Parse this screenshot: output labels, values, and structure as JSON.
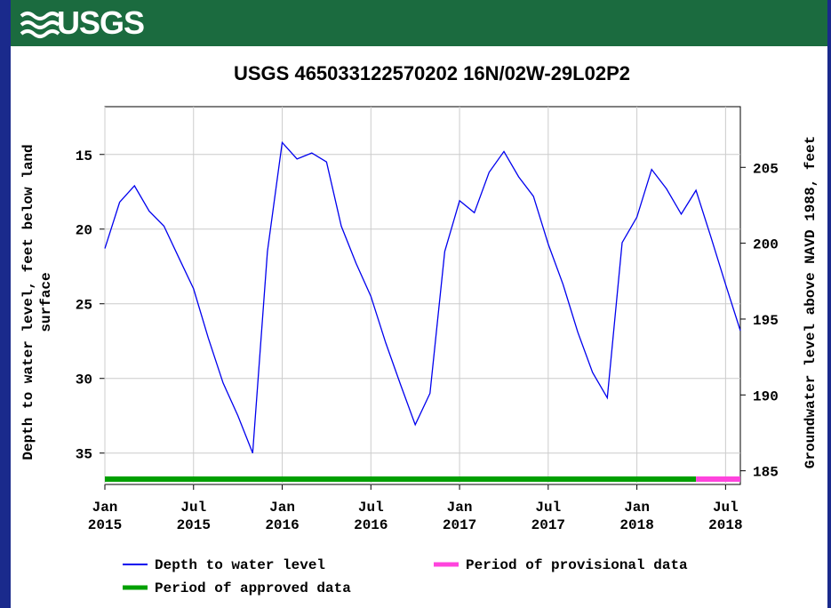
{
  "logo_text": "USGS",
  "chart_data": {
    "type": "line",
    "title": "USGS 465033122570202 16N/02W-29L02P2",
    "ylabel": [
      "Depth to water level, feet below land",
      "surface"
    ],
    "y2label": "Groundwater level above NAVD 1988, feet",
    "x": [
      "2015-01",
      "2015-02",
      "2015-03",
      "2015-04",
      "2015-05",
      "2015-06",
      "2015-07",
      "2015-08",
      "2015-09",
      "2015-10",
      "2015-11",
      "2015-12",
      "2016-01",
      "2016-02",
      "2016-03",
      "2016-04",
      "2016-05",
      "2016-06",
      "2016-07",
      "2016-08",
      "2016-09",
      "2016-10",
      "2016-11",
      "2016-12",
      "2017-01",
      "2017-02",
      "2017-03",
      "2017-04",
      "2017-05",
      "2017-06",
      "2017-07",
      "2017-08",
      "2017-09",
      "2017-10",
      "2017-11",
      "2017-12",
      "2018-01",
      "2018-02",
      "2018-03",
      "2018-04",
      "2018-05",
      "2018-06",
      "2018-07",
      "2018-08"
    ],
    "series": [
      {
        "name": "Depth to water level",
        "color": "#0000ee",
        "values": [
          21.3,
          18.2,
          17.1,
          18.8,
          19.8,
          21.9,
          24,
          27.3,
          30.3,
          32.5,
          35,
          21.5,
          14.2,
          15.3,
          14.9,
          15.5,
          19.8,
          22.3,
          24.5,
          27.6,
          30.4,
          33.1,
          31,
          21.5,
          18.1,
          18.9,
          16.2,
          14.8,
          16.5,
          17.8,
          21,
          23.7,
          26.9,
          29.6,
          31.3,
          20.9,
          19.2,
          16,
          17.3,
          19,
          17.4,
          20.5,
          23.7,
          26.8
        ]
      }
    ],
    "periods": [
      {
        "name": "Period of approved data",
        "color": "#00a000",
        "start": "2015-01",
        "end": "2018-05"
      },
      {
        "name": "Period of provisional data",
        "color": "#ff44dd",
        "start": "2018-05",
        "end": "2018-08"
      }
    ],
    "xlim": [
      "2015-01",
      "2018-08"
    ],
    "xticks": [
      {
        "value": "2015-01",
        "label": [
          "Jan",
          "2015"
        ]
      },
      {
        "value": "2015-07",
        "label": [
          "Jul",
          "2015"
        ]
      },
      {
        "value": "2016-01",
        "label": [
          "Jan",
          "2016"
        ]
      },
      {
        "value": "2016-07",
        "label": [
          "Jul",
          "2016"
        ]
      },
      {
        "value": "2017-01",
        "label": [
          "Jan",
          "2017"
        ]
      },
      {
        "value": "2017-07",
        "label": [
          "Jul",
          "2017"
        ]
      },
      {
        "value": "2018-01",
        "label": [
          "Jan",
          "2018"
        ]
      },
      {
        "value": "2018-07",
        "label": [
          "Jul",
          "2018"
        ]
      }
    ],
    "ylim": [
      37.1,
      11.8
    ],
    "yticks": [
      15,
      20,
      25,
      30,
      35
    ],
    "y2lim": [
      184.1,
      209
    ],
    "y2ticks": [
      185,
      190,
      195,
      200,
      205
    ],
    "grid": true
  }
}
